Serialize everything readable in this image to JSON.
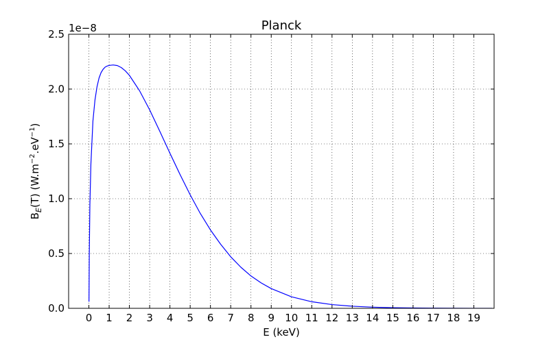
{
  "chart_data": {
    "type": "line",
    "title": "Planck",
    "xlabel": "E (keV)",
    "ylabel": {
      "prefix": "B",
      "subscript": "E",
      "middle": "(T) (W.m",
      "sup1": "−2",
      "middle2": ".eV",
      "sup2": "−1",
      "suffix": ")"
    },
    "offset_text": "1e−8",
    "xlim": [
      -1,
      20
    ],
    "ylim": [
      0,
      2.5
    ],
    "x_ticks": [
      0,
      1,
      2,
      3,
      4,
      5,
      6,
      7,
      8,
      9,
      10,
      11,
      12,
      13,
      14,
      15,
      16,
      17,
      18,
      19
    ],
    "x_tick_labels": [
      "0",
      "1",
      "2",
      "3",
      "4",
      "5",
      "6",
      "7",
      "8",
      "9",
      "10",
      "11",
      "12",
      "13",
      "14",
      "15",
      "16",
      "17",
      "18",
      "19"
    ],
    "y_ticks": [
      0,
      0.5,
      1.0,
      1.5,
      2.0,
      2.5
    ],
    "y_tick_labels": [
      "0.0",
      "0.5",
      "1.0",
      "1.5",
      "2.0",
      "2.5"
    ],
    "grid": true,
    "line_color": "#0000ff",
    "series": [
      {
        "x": [
          0.005,
          0.02,
          0.05,
          0.1,
          0.2,
          0.3,
          0.4,
          0.5,
          0.6,
          0.7,
          0.8,
          0.9,
          1.0,
          1.2,
          1.4,
          1.6,
          1.8,
          2.0,
          2.5,
          3.0,
          3.5,
          4.0,
          4.5,
          5.0,
          5.5,
          6.0,
          6.5,
          7.0,
          7.5,
          8.0,
          8.5,
          9.0,
          10.0,
          11.0,
          12.0,
          13.0,
          14.0,
          15.0,
          16.0,
          17.0,
          18.0,
          19.0,
          19.9
        ],
        "y": [
          0.06,
          0.5,
          0.95,
          1.32,
          1.71,
          1.9,
          2.02,
          2.1,
          2.15,
          2.18,
          2.2,
          2.21,
          2.216,
          2.22,
          2.215,
          2.196,
          2.166,
          2.125,
          1.985,
          1.81,
          1.615,
          1.415,
          1.22,
          1.035,
          0.865,
          0.715,
          0.585,
          0.47,
          0.375,
          0.295,
          0.232,
          0.18,
          0.105,
          0.06,
          0.034,
          0.019,
          0.0105,
          0.0057,
          0.0031,
          0.0016,
          0.0009,
          0.0005,
          0.0003
        ]
      }
    ]
  }
}
